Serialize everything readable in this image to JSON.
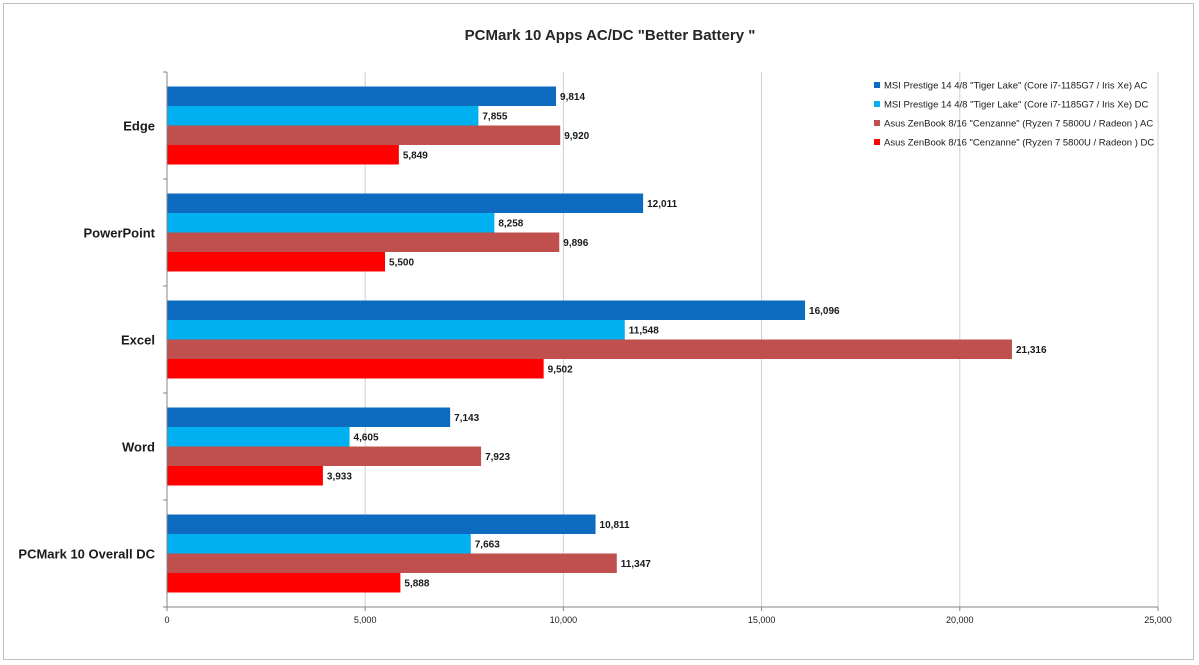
{
  "chart_data": {
    "type": "bar",
    "orientation": "horizontal",
    "title": "PCMark 10 Apps AC/DC \"Better Battery \"",
    "xlim": [
      0,
      25000
    ],
    "x_ticks": [
      "0",
      "5,000",
      "10,000",
      "15,000",
      "20,000",
      "25,000"
    ],
    "grid": "vertical",
    "legend_position": "top-right",
    "categories": [
      "Edge",
      "PowerPoint",
      "Excel",
      "Word",
      "PCMark 10 Overall DC"
    ],
    "series": [
      {
        "name": "MSI Prestige 14 4/8  \"Tiger Lake\" (Core i7-1185G7 / Iris Xe) AC",
        "color": "#0e6cc0",
        "values": [
          9814,
          12011,
          16096,
          7143,
          10811
        ],
        "labels": [
          "9,814",
          "12,011",
          "16,096",
          "7,143",
          "10,811"
        ]
      },
      {
        "name": "MSI Prestige 14 4/8  \"Tiger Lake\" (Core i7-1185G7 / Iris Xe) DC",
        "color": "#00b0f0",
        "values": [
          7855,
          8258,
          11548,
          4605,
          7663
        ],
        "labels": [
          "7,855",
          "8,258",
          "11,548",
          "4,605",
          "7,663"
        ]
      },
      {
        "name": "Asus ZenBook 8/16  \"Cenzanne\" (Ryzen 7 5800U / Radeon ) AC",
        "color": "#c0504d",
        "values": [
          9920,
          9896,
          21316,
          7923,
          11347
        ],
        "labels": [
          "9,920",
          "9,896",
          "21,316",
          "7,923",
          "11,347"
        ]
      },
      {
        "name": "Asus ZenBook 8/16  \"Cenzanne\" (Ryzen 7 5800U / Radeon ) DC",
        "color": "#ff0000",
        "values": [
          5849,
          5500,
          9502,
          3933,
          5888
        ],
        "labels": [
          "5,849",
          "5,500",
          "9,502",
          "3,933",
          "5,888"
        ]
      }
    ]
  }
}
